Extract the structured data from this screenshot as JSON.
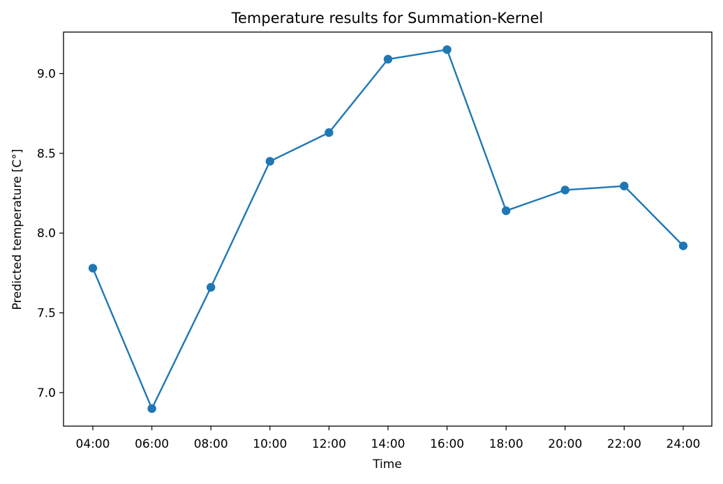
{
  "chart_data": {
    "type": "line",
    "title": "Temperature results for Summation-Kernel",
    "xlabel": "Time",
    "ylabel": "Predicted temperature [C°]",
    "categories": [
      "04:00",
      "06:00",
      "08:00",
      "10:00",
      "12:00",
      "14:00",
      "16:00",
      "18:00",
      "20:00",
      "22:00",
      "24:00"
    ],
    "series": [
      {
        "values": [
          7.78,
          6.9,
          7.66,
          8.45,
          8.63,
          9.09,
          9.15,
          8.14,
          8.27,
          8.295,
          7.92
        ],
        "color": "#1f77b4",
        "marker": "circle"
      }
    ],
    "ylim": [
      6.79,
      9.26
    ],
    "yticks": [
      7.0,
      7.5,
      8.0,
      8.5,
      9.0
    ],
    "ytick_labels": [
      "7.0",
      "7.5",
      "8.0",
      "8.5",
      "9.0"
    ],
    "grid": false,
    "legend": "none"
  }
}
